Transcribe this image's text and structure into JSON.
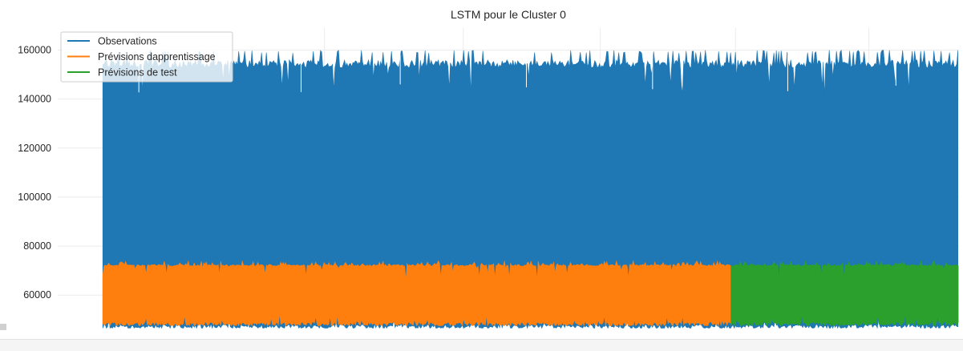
{
  "chart_data": {
    "type": "line",
    "title": "LSTM pour le Cluster 0",
    "xlabel": "",
    "ylabel": "",
    "ylim": [
      46000,
      169000
    ],
    "yticks": [
      60000,
      80000,
      100000,
      120000,
      140000,
      160000
    ],
    "ytick_labels": [
      "60000",
      "80000",
      "100000",
      "120000",
      "140000",
      "160000"
    ],
    "xlim": [
      0,
      1
    ],
    "xgrid": [
      0.296,
      0.45,
      0.602,
      0.752,
      0.9
    ],
    "grid": true,
    "legend_position": "top-left",
    "series": [
      {
        "name": "Observations",
        "color": "#1f77b4",
        "x_range": [
          0.05,
          1.0
        ],
        "y_low": 46500,
        "y_high": 160000,
        "y_typical_high": 156000,
        "y_typical_low": 48000
      },
      {
        "name": "Prévisions dapprentissage",
        "color": "#ff7f0e",
        "x_range": [
          0.05,
          0.747
        ],
        "y_low": 47500,
        "y_high": 74000,
        "y_typical_high": 72500,
        "y_typical_low": 49000
      },
      {
        "name": "Prévisions de test",
        "color": "#2ca02c",
        "x_range": [
          0.747,
          1.0
        ],
        "y_low": 47500,
        "y_high": 74000,
        "y_typical_high": 72500,
        "y_typical_low": 49000
      }
    ]
  }
}
